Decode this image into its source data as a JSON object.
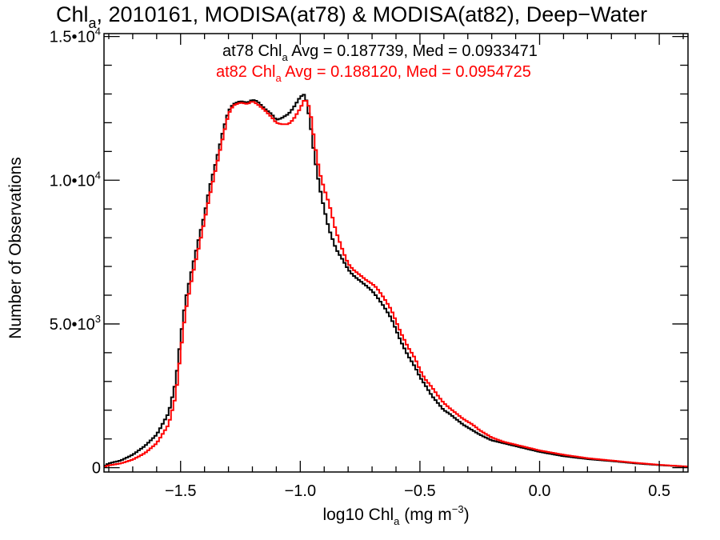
{
  "chart_data": {
    "type": "line",
    "title": {
      "main": "Chl",
      "sub": "a",
      "rest": ", 2010161, MODISA(at78) & MODISA(at82), Deep−Water"
    },
    "xlabel": {
      "pre": "log10 Chl",
      "sub": "a",
      "mid": " (mg m",
      "sup": "−3",
      "post": ")"
    },
    "ylabel": "Number of Observations",
    "xlim": [
      -1.82,
      0.62
    ],
    "ylim": [
      -150,
      15100
    ],
    "xticks": {
      "values": [
        -1.5,
        -1.0,
        -0.5,
        0.0,
        0.5
      ],
      "labels": [
        "−1.5",
        "−1.0",
        "−0.5",
        "0.0",
        "0.5"
      ]
    },
    "yticks": {
      "values": [
        0,
        5000,
        10000,
        15000
      ],
      "labels": [
        {
          "base": "0",
          "sup": ""
        },
        {
          "base": "5.0•10",
          "sup": "3"
        },
        {
          "base": "1.0•10",
          "sup": "4"
        },
        {
          "base": "1.5•10",
          "sup": "4"
        }
      ]
    },
    "x_minor_step": 0.1,
    "y_minor_step": 1000,
    "grid": false,
    "annotations": [
      {
        "series": 0,
        "pre": "at78 Chl",
        "sub": "a",
        "post": " Avg = 0.187739, Med = 0.0933471"
      },
      {
        "series": 1,
        "pre": "at82 Chl",
        "sub": "a",
        "post": " Avg = 0.188120, Med = 0.0954725"
      }
    ],
    "step": 0.01,
    "series": [
      {
        "color": "#000000",
        "x": [
          -1.82,
          -1.8,
          -1.75,
          -1.7,
          -1.65,
          -1.6,
          -1.55,
          -1.52,
          -1.5,
          -1.48,
          -1.45,
          -1.42,
          -1.4,
          -1.38,
          -1.35,
          -1.32,
          -1.3,
          -1.28,
          -1.25,
          -1.22,
          -1.2,
          -1.18,
          -1.15,
          -1.12,
          -1.1,
          -1.08,
          -1.05,
          -1.03,
          -1.0,
          -0.98,
          -0.96,
          -0.94,
          -0.92,
          -0.9,
          -0.88,
          -0.85,
          -0.82,
          -0.8,
          -0.78,
          -0.75,
          -0.72,
          -0.7,
          -0.68,
          -0.65,
          -0.62,
          -0.6,
          -0.58,
          -0.55,
          -0.52,
          -0.5,
          -0.48,
          -0.45,
          -0.42,
          -0.4,
          -0.38,
          -0.35,
          -0.32,
          -0.3,
          -0.28,
          -0.25,
          -0.2,
          -0.15,
          -0.1,
          -0.05,
          0.0,
          0.1,
          0.2,
          0.3,
          0.4,
          0.5,
          0.6,
          0.62
        ],
        "y": [
          50,
          150,
          250,
          450,
          750,
          1150,
          1900,
          3000,
          4500,
          5800,
          7000,
          8100,
          8800,
          9700,
          10700,
          11800,
          12400,
          12650,
          12750,
          12700,
          12800,
          12750,
          12500,
          12300,
          12100,
          12150,
          12300,
          12500,
          12900,
          13000,
          12100,
          10800,
          9800,
          9000,
          8300,
          7600,
          7200,
          6900,
          6700,
          6500,
          6300,
          6150,
          5950,
          5600,
          5200,
          4800,
          4400,
          3900,
          3500,
          3150,
          2900,
          2500,
          2200,
          2000,
          1900,
          1700,
          1500,
          1400,
          1300,
          1150,
          950,
          850,
          750,
          650,
          550,
          400,
          300,
          230,
          150,
          90,
          40,
          30
        ]
      },
      {
        "color": "#ff0000",
        "x": [
          -1.82,
          -1.8,
          -1.75,
          -1.7,
          -1.65,
          -1.6,
          -1.55,
          -1.52,
          -1.5,
          -1.48,
          -1.45,
          -1.42,
          -1.4,
          -1.38,
          -1.35,
          -1.32,
          -1.3,
          -1.28,
          -1.25,
          -1.22,
          -1.2,
          -1.18,
          -1.15,
          -1.12,
          -1.1,
          -1.08,
          -1.05,
          -1.03,
          -1.0,
          -0.98,
          -0.96,
          -0.94,
          -0.92,
          -0.9,
          -0.88,
          -0.85,
          -0.82,
          -0.8,
          -0.78,
          -0.75,
          -0.72,
          -0.7,
          -0.68,
          -0.65,
          -0.62,
          -0.6,
          -0.58,
          -0.55,
          -0.52,
          -0.5,
          -0.48,
          -0.45,
          -0.42,
          -0.4,
          -0.38,
          -0.35,
          -0.32,
          -0.3,
          -0.28,
          -0.25,
          -0.2,
          -0.15,
          -0.1,
          -0.05,
          0.0,
          0.1,
          0.2,
          0.3,
          0.4,
          0.5,
          0.6,
          0.62
        ],
        "y": [
          30,
          80,
          150,
          280,
          500,
          850,
          1500,
          2500,
          4000,
          5400,
          6700,
          7800,
          8600,
          9400,
          10500,
          11600,
          12300,
          12600,
          12700,
          12650,
          12750,
          12650,
          12450,
          12200,
          12000,
          11950,
          11950,
          12100,
          12500,
          12850,
          12500,
          11300,
          10300,
          9700,
          9200,
          8200,
          7500,
          7100,
          6900,
          6700,
          6500,
          6400,
          6250,
          5900,
          5500,
          5100,
          4700,
          4200,
          3800,
          3400,
          3100,
          2800,
          2450,
          2250,
          2100,
          1900,
          1700,
          1600,
          1500,
          1300,
          1050,
          900,
          800,
          700,
          600,
          450,
          330,
          250,
          170,
          100,
          50,
          40
        ]
      }
    ]
  }
}
